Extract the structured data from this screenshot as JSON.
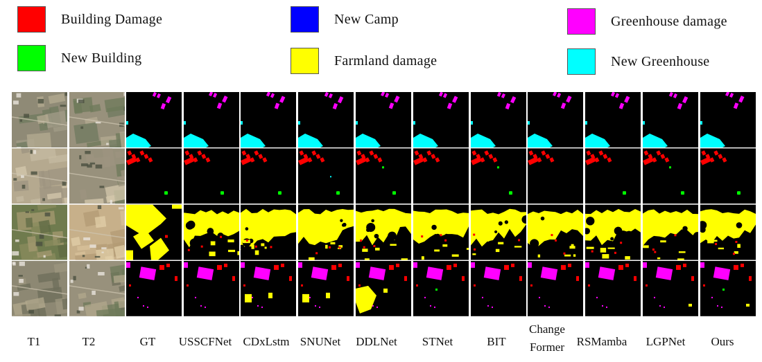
{
  "legend": [
    {
      "key": "building_damage",
      "label": "Building Damage",
      "color": "#ff0000"
    },
    {
      "key": "new_building",
      "label": "New Building",
      "color": "#00ff00"
    },
    {
      "key": "new_camp",
      "label": "New Camp",
      "color": "#0000ff"
    },
    {
      "key": "farmland_damage",
      "label": "Farmland damage",
      "color": "#ffff00"
    },
    {
      "key": "greenhouse_damage",
      "label": "Greenhouse damage",
      "color": "#ff00ff"
    },
    {
      "key": "new_greenhouse",
      "label": "New Greenhouse",
      "color": "#00ffff"
    }
  ],
  "columns": [
    "T1",
    "T2",
    "GT",
    "USSCFNet",
    "CDxLstm",
    "SNUNet",
    "DDLNet",
    "STNet",
    "BIT",
    "Change Former",
    "RSMamba",
    "LGPNet",
    "Ours"
  ],
  "colors": {
    "background": "#000000",
    "separator": "#ffffff"
  }
}
